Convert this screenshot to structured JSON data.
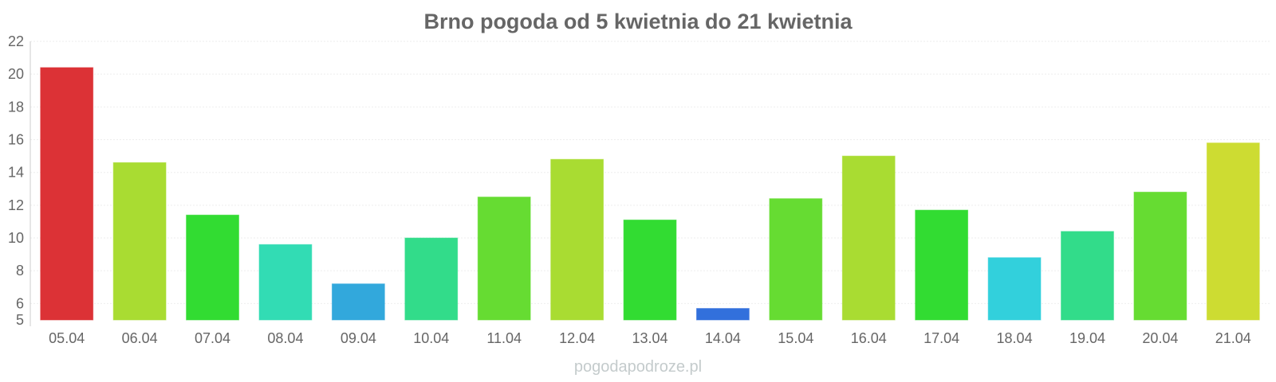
{
  "chart_data": {
    "type": "bar",
    "title": "Brno pogoda od 5 kwietnia do 21 kwietnia",
    "xlabel": "",
    "ylabel": "",
    "categories": [
      "05.04",
      "06.04",
      "07.04",
      "08.04",
      "09.04",
      "10.04",
      "11.04",
      "12.04",
      "13.04",
      "14.04",
      "15.04",
      "16.04",
      "17.04",
      "18.04",
      "19.04",
      "20.04",
      "21.04"
    ],
    "values": [
      20.4,
      14.6,
      11.4,
      9.6,
      7.2,
      10.0,
      12.5,
      14.8,
      11.1,
      5.7,
      12.4,
      15.0,
      11.7,
      8.8,
      10.4,
      12.8,
      15.8
    ],
    "colors": [
      "#dc3236",
      "#a9dc32",
      "#32dc32",
      "#32dcb4",
      "#32a8dc",
      "#32dc8a",
      "#66dc32",
      "#a9dc32",
      "#32dc32",
      "#3270dc",
      "#66dc32",
      "#a9dc32",
      "#32dc32",
      "#32d0dc",
      "#32dc8a",
      "#66dc32",
      "#cddc32"
    ],
    "ylim": [
      5,
      22
    ],
    "yticks": [
      5,
      6,
      8,
      10,
      12,
      14,
      16,
      18,
      20,
      22
    ],
    "grid": true,
    "legend": "none"
  },
  "footer": {
    "watermark": "pogodapodroze.pl"
  }
}
